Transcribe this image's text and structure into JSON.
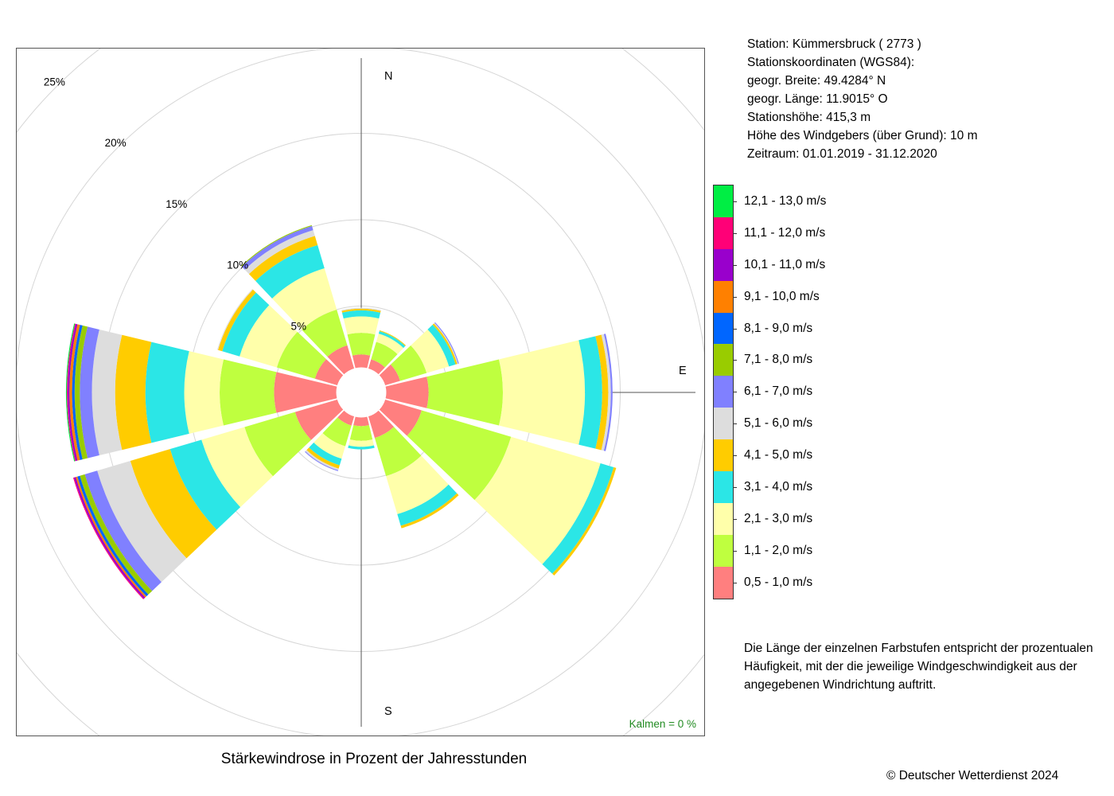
{
  "station": {
    "line1": "Station:  Kümmersbruck  ( 2773 )",
    "line2": "Stationskoordinaten (WGS84):",
    "line3": "geogr. Breite: 49.4284° N",
    "line4": "geogr. Länge: 11.9015° O",
    "line5": "Stationshöhe: 415,3 m",
    "line6": "Höhe des Windgebers (über Grund): 10 m",
    "line7": "Zeitraum: 01.01.2019 - 31.12.2020"
  },
  "explanation": "Die Länge der einzelnen Farbstufen entspricht der prozentualen Häufigkeit, mit der die jeweilige Windgeschwindigkeit aus der angegebenen Windrichtung auftritt.",
  "copyright": "© Deutscher Wetterdienst  2024",
  "chart_data": {
    "type": "windrose",
    "title": "Stärkewindrose in Prozent der Jahresstunden",
    "calms": "Kalmen  =  0 %",
    "directions": [
      "N",
      "NNE",
      "ENE",
      "E",
      "ESE",
      "SSE",
      "S",
      "SSW",
      "WSW",
      "W",
      "WNW",
      "NNW"
    ],
    "direction_labels": [
      "N",
      "E",
      "S"
    ],
    "radial_ticks": [
      "5%",
      "10%",
      "15%",
      "20%",
      "25%"
    ],
    "radial_tick_values": [
      5,
      10,
      15,
      20,
      25
    ],
    "rmax": 25,
    "inner_radius_percent": 1.45,
    "speed_classes": [
      {
        "label": "0,5 - 1,0 m/s",
        "color": "#ff7f7f"
      },
      {
        "label": "1,1 - 2,0 m/s",
        "color": "#bfff3f"
      },
      {
        "label": "2,1 - 3,0 m/s",
        "color": "#ffffaa"
      },
      {
        "label": "3,1 - 4,0 m/s",
        "color": "#2be6e6"
      },
      {
        "label": "4,1 - 5,0 m/s",
        "color": "#ffcc00"
      },
      {
        "label": "5,1 - 6,0 m/s",
        "color": "#dddddd"
      },
      {
        "label": "6,1 - 7,0 m/s",
        "color": "#8080ff"
      },
      {
        "label": "7,1 - 8,0 m/s",
        "color": "#99cc00"
      },
      {
        "label": "8,1 - 9,0 m/s",
        "color": "#0066ff"
      },
      {
        "label": "9,1 - 10,0 m/s",
        "color": "#ff8000"
      },
      {
        "label": "10,1 - 11,0 m/s",
        "color": "#9900cc"
      },
      {
        "label": "11,1 - 12,0 m/s",
        "color": "#ff0077"
      },
      {
        "label": "12,1 - 13,0 m/s",
        "color": "#00ee44"
      }
    ],
    "series": [
      {
        "direction": "N",
        "values": [
          0.75,
          1.25,
          0.95,
          0.35,
          0.1,
          0.05,
          0,
          0,
          0,
          0,
          0,
          0,
          0
        ]
      },
      {
        "direction": "NNE",
        "values": [
          0.55,
          1.05,
          0.5,
          0.15,
          0.05,
          0,
          0,
          0,
          0,
          0,
          0,
          0,
          0
        ]
      },
      {
        "direction": "ENE",
        "values": [
          0.9,
          1.6,
          1.35,
          0.4,
          0.1,
          0.05,
          0.05,
          0,
          0,
          0,
          0,
          0,
          0
        ]
      },
      {
        "direction": "E",
        "values": [
          2.45,
          4.3,
          4.75,
          1.0,
          0.35,
          0.15,
          0.1,
          0,
          0,
          0,
          0,
          0,
          0
        ]
      },
      {
        "direction": "ESE",
        "values": [
          2.2,
          5.4,
          5.4,
          0.8,
          0.15,
          0,
          0,
          0,
          0,
          0,
          0,
          0,
          0
        ]
      },
      {
        "direction": "SSE",
        "values": [
          1.3,
          2.3,
          2.3,
          0.7,
          0.15,
          0,
          0,
          0,
          0,
          0,
          0,
          0,
          0
        ]
      },
      {
        "direction": "S",
        "values": [
          0.5,
          0.85,
          0.35,
          0.15,
          0,
          0,
          0,
          0,
          0,
          0,
          0,
          0,
          0
        ]
      },
      {
        "direction": "SSW",
        "values": [
          0.55,
          1.25,
          0.75,
          0.4,
          0.2,
          0.1,
          0.05,
          0,
          0,
          0,
          0,
          0,
          0
        ]
      },
      {
        "direction": "WSW",
        "values": [
          2.55,
          3.05,
          2.6,
          1.9,
          2.4,
          2.0,
          0.75,
          0.3,
          0.15,
          0.1,
          0.1,
          0.05,
          0
        ]
      },
      {
        "direction": "W",
        "values": [
          3.6,
          3.15,
          2.05,
          2.25,
          1.75,
          1.35,
          0.7,
          0.3,
          0.15,
          0.15,
          0.1,
          0.05,
          0.05
        ]
      },
      {
        "direction": "WNW",
        "values": [
          1.35,
          2.3,
          2.25,
          1.05,
          0.25,
          0.05,
          0,
          0,
          0,
          0,
          0,
          0,
          0
        ]
      },
      {
        "direction": "NNW",
        "values": [
          1.4,
          2.15,
          2.5,
          1.4,
          0.55,
          0.35,
          0.25,
          0.05,
          0,
          0,
          0,
          0,
          0
        ]
      }
    ]
  }
}
